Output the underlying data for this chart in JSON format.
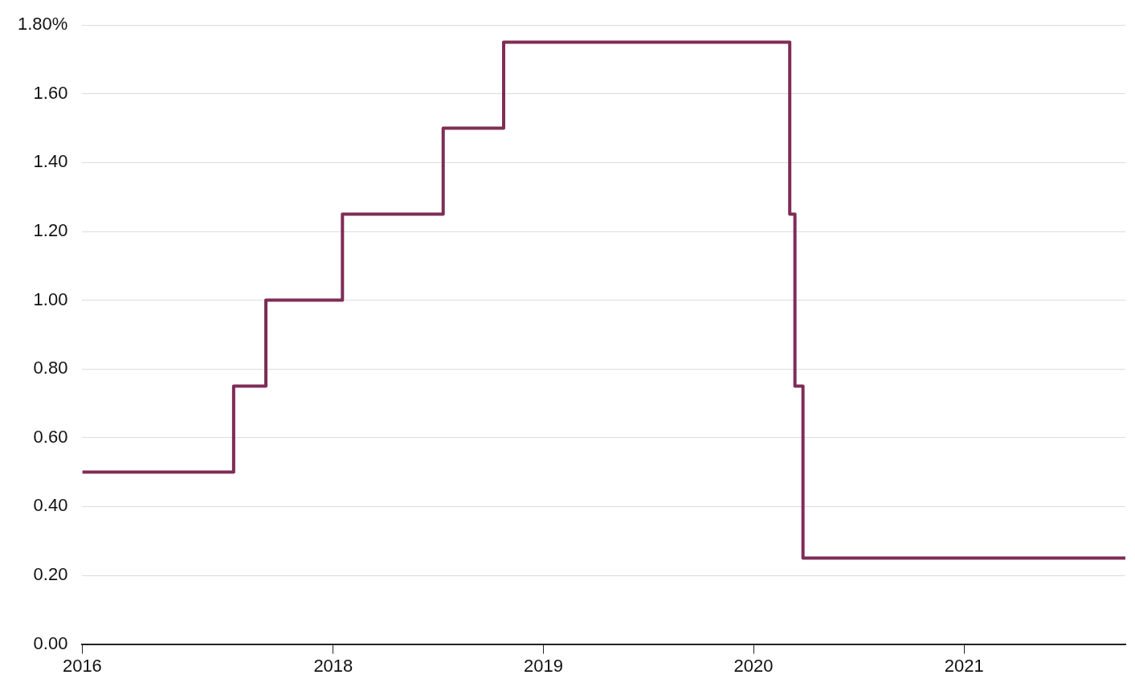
{
  "chart_data": {
    "type": "step",
    "x": [
      "2016-10-22",
      "2017-07-12",
      "2017-09-06",
      "2018-01-17",
      "2018-07-11",
      "2018-10-24",
      "2020-03-04",
      "2020-03-13",
      "2020-03-27",
      "2021-10-08"
    ],
    "series": [
      {
        "color": "#7f2c56",
        "values": [
          0.5,
          0.75,
          1.0,
          1.25,
          1.5,
          1.75,
          1.25,
          0.75,
          0.25,
          0.25
        ]
      }
    ],
    "xlim": [
      "2016-10-22",
      "2021-10-08"
    ],
    "xticks": [
      {
        "value": "2016-10-22",
        "label": "2016"
      },
      {
        "value": "2018-01-01",
        "label": "2018"
      },
      {
        "value": "2019-01-01",
        "label": "2019"
      },
      {
        "value": "2020-01-01",
        "label": "2020"
      },
      {
        "value": "2021-01-01",
        "label": "2021"
      }
    ],
    "ylim": [
      0,
      1.8
    ],
    "yticks": [
      {
        "value": 0,
        "label": "0.00"
      },
      {
        "value": 0.2,
        "label": "0.20"
      },
      {
        "value": 0.4,
        "label": "0.40"
      },
      {
        "value": 0.6,
        "label": "0.60"
      },
      {
        "value": 0.8,
        "label": "0.80"
      },
      {
        "value": 1.0,
        "label": "1.00"
      },
      {
        "value": 1.2,
        "label": "1.20"
      },
      {
        "value": 1.4,
        "label": "1.40"
      },
      {
        "value": 1.6,
        "label": "1.60"
      },
      {
        "value": 1.8,
        "label": "1.80%"
      }
    ],
    "grid": "y"
  }
}
